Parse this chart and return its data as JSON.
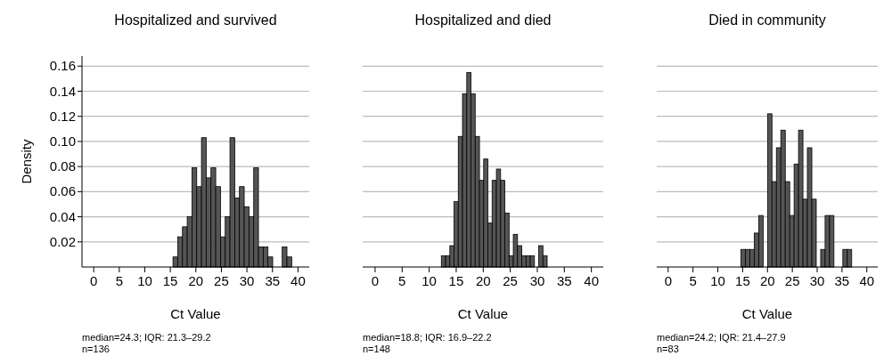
{
  "chart_data": [
    {
      "type": "histogram",
      "title": "Hospitalized and survived",
      "xlabel": "Ct Value",
      "ylabel": "Density",
      "annotations": [
        "median=24.3; IQR: 21.3–29.2",
        "n=136"
      ],
      "bins": [
        15.52,
        16.45,
        17.38,
        18.31,
        19.24,
        20.17,
        21.1,
        22.03,
        22.96,
        23.89,
        24.82,
        25.75,
        26.68,
        27.61,
        28.54,
        29.47,
        30.4,
        31.33,
        32.26,
        33.19,
        34.12,
        35.05,
        35.98,
        36.91,
        37.84,
        38.77
      ],
      "values": [
        0.008,
        0.024,
        0.032,
        0.04,
        0.079,
        0.064,
        0.103,
        0.071,
        0.079,
        0.064,
        0.024,
        0.04,
        0.103,
        0.055,
        0.064,
        0.048,
        0.04,
        0.079,
        0.016,
        0.016,
        0.008,
        0,
        0,
        0.016,
        0.008
      ],
      "color": "#555555",
      "xlim": [
        -2.3,
        42.2
      ],
      "ylim": [
        0,
        0.168
      ],
      "xticks": [
        0,
        5,
        10,
        15,
        20,
        25,
        30,
        35,
        40
      ],
      "yticks": [
        {
          "value": 0.02,
          "label": "0.02"
        },
        {
          "value": 0.04,
          "label": "0.04"
        },
        {
          "value": 0.06,
          "label": "0.06"
        },
        {
          "value": 0.08,
          "label": "0.08"
        },
        {
          "value": 0.1,
          "label": "0.10"
        },
        {
          "value": 0.12,
          "label": "0.12"
        },
        {
          "value": 0.14,
          "label": "0.14"
        },
        {
          "value": 0.16,
          "label": "0.16"
        }
      ],
      "grid": "y"
    },
    {
      "type": "histogram",
      "title": "Hospitalized and died",
      "xlabel": "Ct Value",
      "annotations": [
        "median=18.8; IQR: 16.9–22.2",
        "n=148"
      ],
      "bins": [
        12.25,
        13.03,
        13.82,
        14.6,
        15.38,
        16.16,
        16.95,
        17.73,
        18.51,
        19.3,
        20.08,
        20.86,
        21.64,
        22.43,
        23.21,
        23.99,
        24.78,
        25.56,
        26.34,
        27.12,
        27.91,
        28.69,
        29.47,
        30.26,
        31.04,
        31.82
      ],
      "values": [
        0.009,
        0.009,
        0.017,
        0.052,
        0.104,
        0.138,
        0.155,
        0.138,
        0.104,
        0.069,
        0.086,
        0.035,
        0.069,
        0.078,
        0.069,
        0.043,
        0.009,
        0.026,
        0.017,
        0.009,
        0.009,
        0.009,
        0,
        0.017,
        0.009
      ],
      "color": "#555555",
      "xlim": [
        -2.3,
        42.2
      ],
      "ylim": [
        0,
        0.16
      ],
      "xticks": [
        0,
        5,
        10,
        15,
        20,
        25,
        30,
        35,
        40
      ],
      "yticks": [
        0.02,
        0.04,
        0.06,
        0.08,
        0.1,
        0.12,
        0.14,
        0.16
      ],
      "grid": "y",
      "tick_labels": "x"
    },
    {
      "type": "histogram",
      "title": "Died in community",
      "xlabel": "Ct Value",
      "annotations": [
        "median=24.2; IQR: 21.4–27.9",
        "n=83"
      ],
      "bins": [
        14.66,
        15.55,
        16.44,
        17.33,
        18.23,
        19.12,
        20.01,
        20.9,
        21.79,
        22.68,
        23.58,
        24.47,
        25.36,
        26.25,
        27.14,
        28.03,
        28.93,
        29.82,
        30.71,
        31.6,
        32.49,
        33.38,
        34.28,
        35.17,
        36.06,
        36.95
      ],
      "values": [
        0.014,
        0.014,
        0.014,
        0.027,
        0.041,
        0,
        0.122,
        0.068,
        0.095,
        0.109,
        0.068,
        0.041,
        0.082,
        0.109,
        0.054,
        0.095,
        0.054,
        0,
        0.014,
        0.041,
        0.041,
        0,
        0,
        0.014,
        0.014
      ],
      "color": "#555555",
      "xlim": [
        -2.3,
        42.2
      ],
      "ylim": [
        0,
        0.16
      ],
      "xticks": [
        0,
        5,
        10,
        15,
        20,
        25,
        30,
        35,
        40
      ],
      "yticks": [
        0.02,
        0.04,
        0.06,
        0.08,
        0.1,
        0.12,
        0.14,
        0.16
      ],
      "grid": "y",
      "tick_labels": "x"
    }
  ]
}
